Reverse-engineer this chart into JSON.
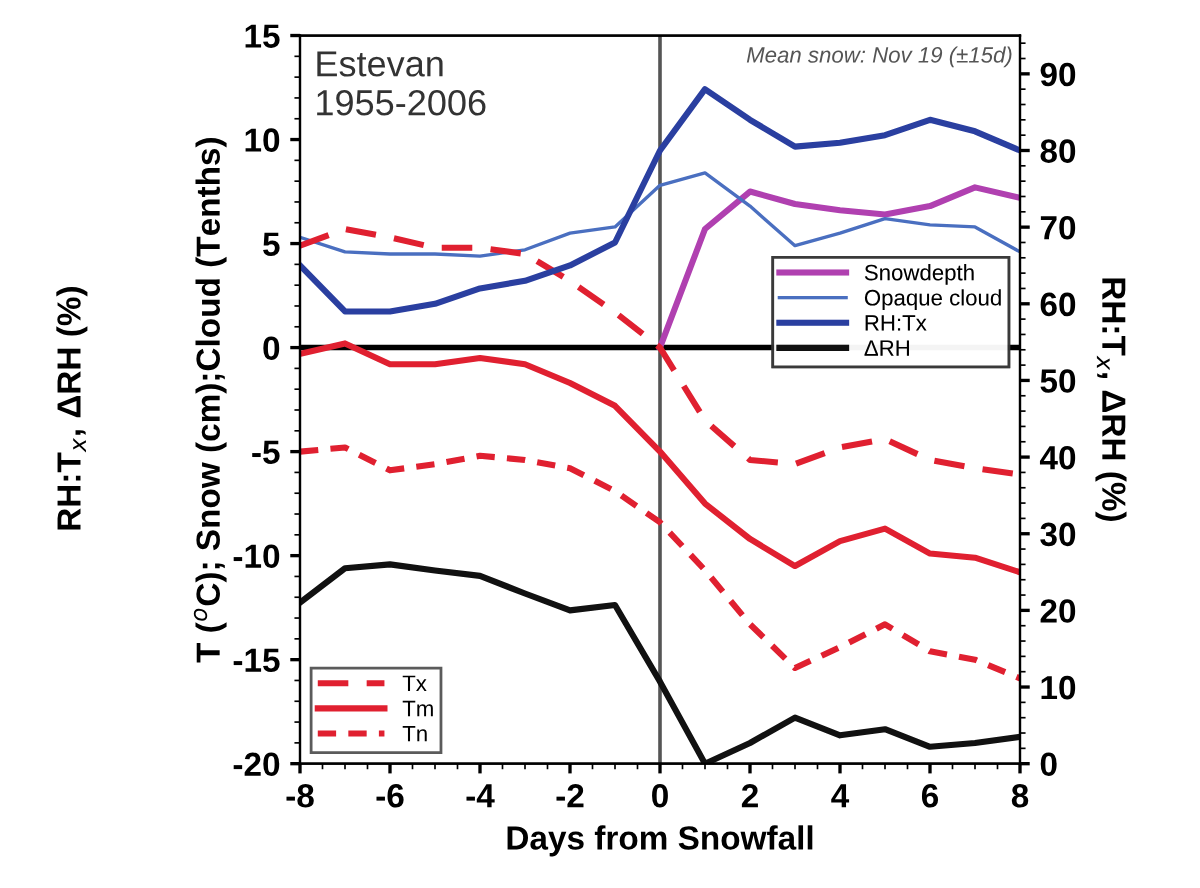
{
  "chart_data": {
    "type": "line",
    "xlabel": "Days from Snowfall",
    "ylabel": "T ($^{o}$C); Snow (cm);Cloud (Tenths)",
    "y2label": "RH:T$_{x}$, ΔRH (%)",
    "x": [
      -8,
      -7,
      -6,
      -5,
      -4,
      -3,
      -2,
      -1,
      0,
      1,
      2,
      3,
      4,
      5,
      6,
      7,
      8
    ],
    "xlim": [
      -8,
      8
    ],
    "xticks": [
      -8,
      -6,
      -4,
      -2,
      0,
      2,
      4,
      6,
      8
    ],
    "ylim": [
      -20,
      15
    ],
    "yticks": [
      -20,
      -15,
      -10,
      -5,
      0,
      5,
      10,
      15
    ],
    "y2lim": [
      0,
      95
    ],
    "y2ticks": [
      0,
      10,
      20,
      30,
      40,
      50,
      60,
      70,
      80,
      90
    ],
    "series": [
      {
        "name": "Snowdepth",
        "color": "#b040b0",
        "values": [
          null,
          null,
          null,
          null,
          null,
          null,
          null,
          null,
          0,
          5.7,
          7.5,
          6.9,
          6.6,
          6.4,
          6.8,
          7.7,
          7.2
        ]
      },
      {
        "name": "Opaque cloud",
        "color": "#4a6fc0",
        "values": [
          5.3,
          4.6,
          4.5,
          4.5,
          4.4,
          4.7,
          5.5,
          5.8,
          7.8,
          8.4,
          6.8,
          4.9,
          5.5,
          6.2,
          5.9,
          5.8,
          4.6
        ]
      },
      {
        "name": "RH:Tx",
        "color": "#2a3fa0",
        "axis": "y2",
        "values": [
          65,
          59,
          59,
          60,
          62,
          63,
          65,
          68,
          80,
          88,
          84,
          80.5,
          81,
          82,
          84,
          82.5,
          80
        ]
      },
      {
        "name": "ΔRH",
        "color": "#111111",
        "axis": "y2",
        "values": [
          21,
          25.5,
          26,
          25.2,
          24.5,
          22.2,
          20,
          20.7,
          10.7,
          0,
          2.7,
          6,
          3.7,
          4.5,
          2.2,
          2.7,
          3.5
        ]
      },
      {
        "name": "Tx",
        "color": "#e02030",
        "line_style": "dashed",
        "values": [
          4.9,
          5.7,
          5.3,
          4.8,
          4.8,
          4.5,
          3.2,
          1.7,
          0,
          -3.5,
          -5.4,
          -5.6,
          -4.8,
          -4.4,
          -5.4,
          -5.8,
          -6.1
        ]
      },
      {
        "name": "Tm",
        "color": "#e02030",
        "values": [
          -0.3,
          0.2,
          -0.8,
          -0.8,
          -0.5,
          -0.8,
          -1.7,
          -2.8,
          -5,
          -7.5,
          -9.2,
          -10.5,
          -9.3,
          -8.7,
          -9.9,
          -10.1,
          -10.8
        ]
      },
      {
        "name": "Tn",
        "color": "#e02030",
        "line_style": "dotted",
        "values": [
          -5,
          -4.8,
          -5.9,
          -5.6,
          -5.2,
          -5.4,
          -5.8,
          -6.9,
          -8.4,
          -10.7,
          -13.3,
          -15.4,
          -14.4,
          -13.3,
          -14.6,
          -15,
          -15.9
        ]
      }
    ],
    "ref_lines": [
      {
        "axis": "x",
        "value": 0,
        "color": "#555555"
      },
      {
        "axis": "y",
        "value": 0,
        "color": "#000000"
      }
    ],
    "annotations": [
      "Estevan\n1955-2006",
      "Mean snow: Nov 19 (±15d)",
      "RH:T$_{x}$, ΔRH (%)"
    ],
    "legend": [
      "center right",
      "lower left"
    ],
    "grid": false
  }
}
